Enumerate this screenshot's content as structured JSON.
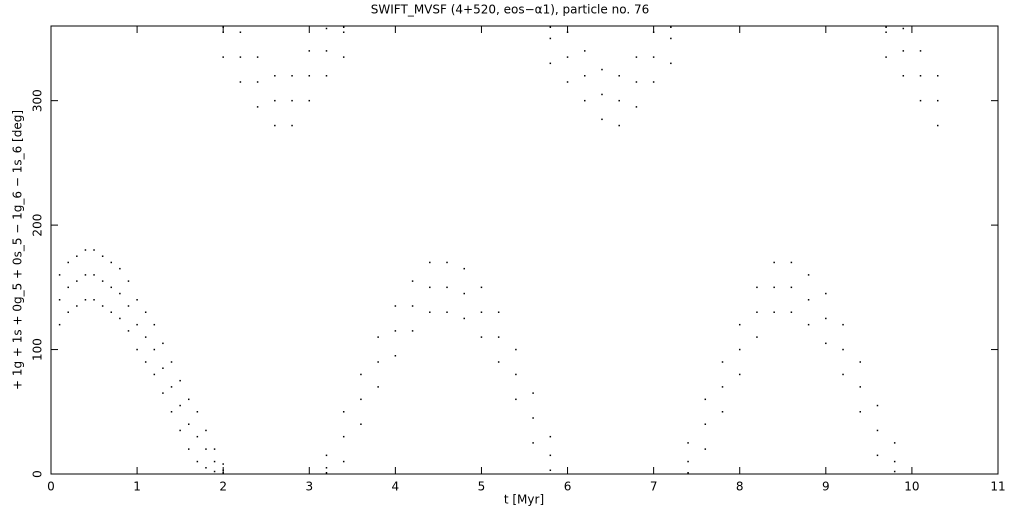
{
  "chart_data": {
    "type": "scatter",
    "title": "SWIFT_MVSF (4+520, eos−α1), particle no. 76",
    "x_label": "t [Myr]",
    "y_label": "+ 1g + 1s + 0g_5 + 0s_5 − 1g_6 − 1s_6 [deg]",
    "xlim": [
      0,
      11
    ],
    "ylim": [
      0,
      360
    ],
    "xticks": [
      0,
      1,
      2,
      3,
      4,
      5,
      6,
      7,
      8,
      9,
      10,
      11
    ],
    "yticks": [
      0,
      100,
      200,
      300
    ],
    "color": "#000000",
    "x": [
      0.1,
      0.1,
      0.1,
      0.2,
      0.2,
      0.2,
      0.3,
      0.3,
      0.3,
      0.4,
      0.4,
      0.4,
      0.5,
      0.5,
      0.5,
      0.6,
      0.6,
      0.6,
      0.7,
      0.7,
      0.7,
      0.8,
      0.8,
      0.8,
      0.9,
      0.9,
      0.9,
      1.0,
      1.0,
      1.0,
      1.1,
      1.1,
      1.1,
      1.2,
      1.2,
      1.2,
      1.3,
      1.3,
      1.3,
      1.4,
      1.4,
      1.4,
      1.5,
      1.5,
      1.5,
      1.6,
      1.6,
      1.6,
      1.7,
      1.7,
      1.7,
      1.8,
      1.8,
      1.8,
      1.9,
      1.9,
      1.9,
      2.0,
      2.0,
      2.0,
      2.0,
      2.0,
      2.0,
      2.2,
      2.2,
      2.2,
      2.4,
      2.4,
      2.4,
      2.6,
      2.6,
      2.6,
      2.8,
      2.8,
      2.8,
      3.0,
      3.0,
      3.0,
      3.2,
      3.2,
      3.2,
      3.4,
      3.4,
      3.4,
      3.2,
      3.2,
      3.2,
      3.4,
      3.4,
      3.4,
      3.6,
      3.6,
      3.6,
      3.8,
      3.8,
      3.8,
      4.0,
      4.0,
      4.0,
      4.2,
      4.2,
      4.2,
      4.4,
      4.4,
      4.4,
      4.6,
      4.6,
      4.6,
      4.8,
      4.8,
      4.8,
      5.0,
      5.0,
      5.0,
      5.2,
      5.2,
      5.2,
      5.4,
      5.4,
      5.4,
      5.6,
      5.6,
      5.6,
      5.8,
      5.8,
      5.8,
      5.8,
      5.8,
      5.8,
      6.0,
      6.0,
      6.0,
      6.2,
      6.2,
      6.2,
      6.4,
      6.4,
      6.4,
      6.6,
      6.6,
      6.6,
      6.8,
      6.8,
      6.8,
      7.0,
      7.0,
      7.0,
      7.2,
      7.2,
      7.2,
      7.4,
      7.4,
      7.4,
      7.6,
      7.6,
      7.6,
      7.8,
      7.8,
      7.8,
      8.0,
      8.0,
      8.0,
      8.2,
      8.2,
      8.2,
      8.4,
      8.4,
      8.4,
      8.6,
      8.6,
      8.6,
      8.8,
      8.8,
      8.8,
      9.0,
      9.0,
      9.0,
      9.2,
      9.2,
      9.2,
      9.4,
      9.4,
      9.4,
      9.6,
      9.6,
      9.6,
      9.8,
      9.8,
      9.8,
      9.7,
      9.7,
      9.7,
      9.9,
      9.9,
      9.9,
      10.1,
      10.1,
      10.1,
      10.3,
      10.3,
      10.3
    ],
    "values": [
      120,
      140,
      160,
      130,
      150,
      170,
      135,
      155,
      175,
      140,
      160,
      180,
      140,
      160,
      180,
      135,
      155,
      175,
      130,
      150,
      170,
      125,
      145,
      165,
      115,
      135,
      155,
      100,
      120,
      140,
      90,
      110,
      130,
      80,
      100,
      120,
      65,
      85,
      105,
      50,
      70,
      90,
      35,
      55,
      75,
      20,
      40,
      60,
      10,
      30,
      50,
      5,
      20,
      35,
      2,
      10,
      20,
      1,
      3,
      8,
      335,
      355,
      359,
      315,
      335,
      355,
      295,
      315,
      335,
      280,
      300,
      320,
      280,
      300,
      320,
      300,
      320,
      340,
      320,
      340,
      358,
      335,
      355,
      359,
      1,
      5,
      15,
      10,
      30,
      50,
      40,
      60,
      80,
      70,
      90,
      110,
      95,
      115,
      135,
      115,
      135,
      155,
      130,
      150,
      170,
      130,
      150,
      170,
      125,
      145,
      165,
      110,
      130,
      150,
      90,
      110,
      130,
      60,
      80,
      100,
      25,
      45,
      65,
      3,
      15,
      30,
      330,
      350,
      359,
      315,
      335,
      355,
      300,
      320,
      340,
      285,
      305,
      325,
      280,
      300,
      320,
      295,
      315,
      335,
      315,
      335,
      355,
      330,
      350,
      359,
      1,
      10,
      25,
      20,
      40,
      60,
      50,
      70,
      90,
      80,
      100,
      120,
      110,
      130,
      150,
      130,
      150,
      170,
      130,
      150,
      170,
      120,
      140,
      160,
      105,
      125,
      145,
      80,
      100,
      120,
      50,
      70,
      90,
      15,
      35,
      55,
      2,
      10,
      25,
      335,
      355,
      359,
      320,
      340,
      358,
      300,
      320,
      340,
      280,
      300,
      320
    ]
  }
}
